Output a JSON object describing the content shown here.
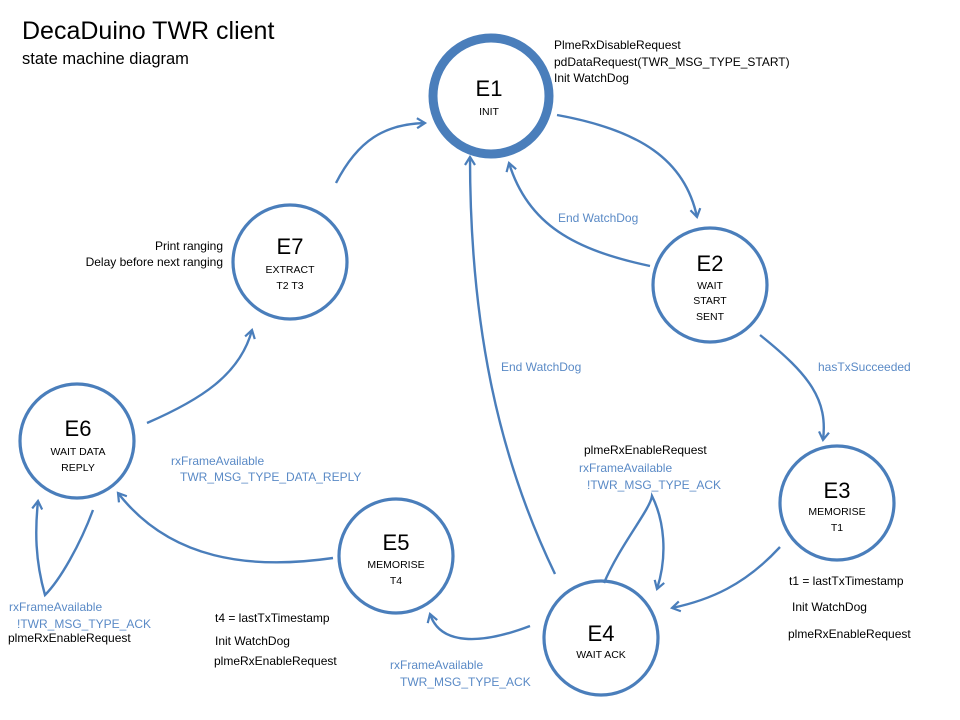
{
  "title": "DecaDuino TWR client",
  "subtitle": "state machine diagram",
  "colors": {
    "stroke": "#4a7ebb",
    "condition_text": "#5a8ac6",
    "action_text": "#000000"
  },
  "states": {
    "e1": {
      "id": "E1",
      "lines": [
        "INIT"
      ]
    },
    "e2": {
      "id": "E2",
      "lines": [
        "WAIT",
        "START",
        "SENT"
      ]
    },
    "e3": {
      "id": "E3",
      "lines": [
        "MEMORISE",
        "T1"
      ]
    },
    "e4": {
      "id": "E4",
      "lines": [
        "WAIT ACK"
      ]
    },
    "e5": {
      "id": "E5",
      "lines": [
        "MEMORISE",
        "T4"
      ]
    },
    "e6": {
      "id": "E6",
      "lines": [
        "WAIT DATA",
        "REPLY"
      ]
    },
    "e7": {
      "id": "E7",
      "lines": [
        "EXTRACT",
        "T2 T3"
      ]
    }
  },
  "actions": {
    "e1": [
      "PlmeRxDisableRequest",
      "pdDataRequest(TWR_MSG_TYPE_START)",
      "Init WatchDog"
    ],
    "e3": [
      "t1 = lastTxTimestamp",
      "Init WatchDog",
      "plmeRxEnableRequest"
    ],
    "e4": [
      "plmeRxEnableRequest"
    ],
    "e5": [
      "t4 = lastTxTimestamp",
      "Init WatchDog",
      "plmeRxEnableRequest"
    ],
    "e6": [
      "plmeRxEnableRequest"
    ],
    "e7": [
      "Print ranging",
      "Delay before next ranging"
    ]
  },
  "transitions": {
    "e2_to_e1": [
      "End WatchDog"
    ],
    "e2_to_e3": [
      "hasTxSucceeded"
    ],
    "e4_to_e1": [
      "End WatchDog"
    ],
    "e4_self": [
      "rxFrameAvailable",
      "!TWR_MSG_TYPE_ACK"
    ],
    "e4_to_e5": [
      "rxFrameAvailable",
      "TWR_MSG_TYPE_ACK"
    ],
    "e5_to_e6": [
      "rxFrameAvailable",
      "TWR_MSG_TYPE_DATA_REPLY"
    ],
    "e6_self": [
      "rxFrameAvailable",
      "!TWR_MSG_TYPE_ACK"
    ]
  }
}
